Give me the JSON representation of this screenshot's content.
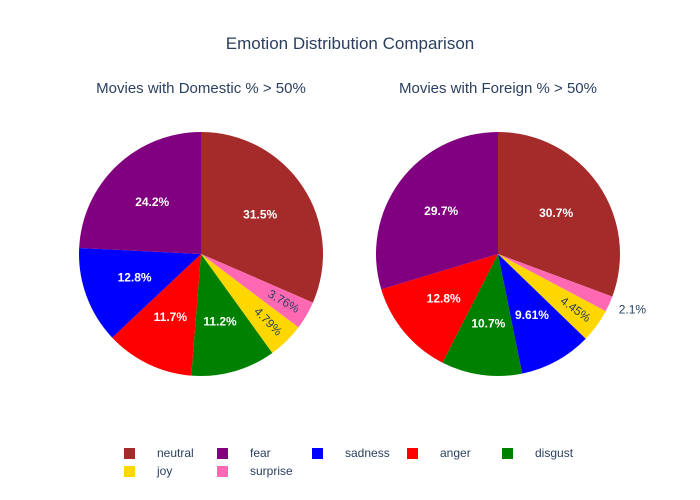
{
  "chart_data": {
    "type": "pie",
    "title": "Emotion Distribution Comparison",
    "categories": [
      "neutral",
      "fear",
      "sadness",
      "anger",
      "disgust",
      "joy",
      "surprise"
    ],
    "colors": {
      "neutral": "#a52a2a",
      "fear": "#800080",
      "sadness": "#0000ff",
      "anger": "#ff0000",
      "disgust": "#008000",
      "joy": "#ffd700",
      "surprise": "#ff69b4"
    },
    "legend_position": "bottom",
    "pies": [
      {
        "title": "Movies with Domestic % > 50%",
        "slices": [
          {
            "label": "neutral",
            "value": 31.5,
            "text": "31.5%"
          },
          {
            "label": "surprise",
            "value": 3.76,
            "text": "3.76%"
          },
          {
            "label": "joy",
            "value": 4.79,
            "text": "4.79%"
          },
          {
            "label": "disgust",
            "value": 11.2,
            "text": "11.2%"
          },
          {
            "label": "anger",
            "value": 11.7,
            "text": "11.7%"
          },
          {
            "label": "sadness",
            "value": 12.8,
            "text": "12.8%"
          },
          {
            "label": "fear",
            "value": 24.2,
            "text": "24.2%"
          }
        ]
      },
      {
        "title": "Movies with Foreign % > 50%",
        "slices": [
          {
            "label": "neutral",
            "value": 30.7,
            "text": "30.7%"
          },
          {
            "label": "surprise",
            "value": 2.1,
            "text": "2.1%"
          },
          {
            "label": "joy",
            "value": 4.45,
            "text": "4.45%"
          },
          {
            "label": "sadness",
            "value": 9.61,
            "text": "9.61%"
          },
          {
            "label": "disgust",
            "value": 10.7,
            "text": "10.7%"
          },
          {
            "label": "anger",
            "value": 12.8,
            "text": "12.8%"
          },
          {
            "label": "fear",
            "value": 29.7,
            "text": "29.7%"
          }
        ]
      }
    ]
  }
}
